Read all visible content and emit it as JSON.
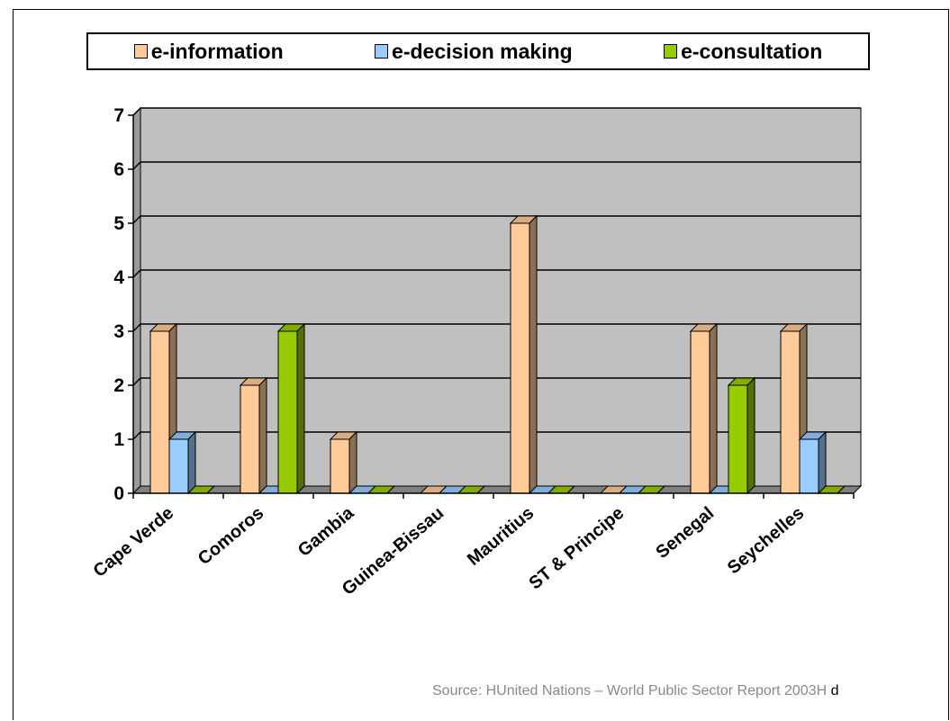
{
  "chart_data": {
    "type": "bar",
    "categories": [
      "Cape Verde",
      "Comoros",
      "Gambia",
      "Guinea-Bissau",
      "Mauritius",
      "ST & Principe",
      "Senegal",
      "Seychelles"
    ],
    "series": [
      {
        "name": "e-information",
        "values": [
          3,
          2,
          1,
          0,
          5,
          0,
          3,
          3
        ],
        "color": "#ffcc99"
      },
      {
        "name": "e-decision making",
        "values": [
          1,
          0,
          0,
          0,
          0,
          0,
          0,
          1
        ],
        "color": "#99ccff"
      },
      {
        "name": "e-consultation",
        "values": [
          0,
          3,
          0,
          0,
          0,
          0,
          2,
          0
        ],
        "color": "#99cc00"
      }
    ],
    "ylim": [
      0,
      7
    ],
    "yticks": [
      0,
      1,
      2,
      3,
      4,
      5,
      6,
      7
    ],
    "grid": true,
    "legend_position": "top",
    "plot_background": "#c0c0c0"
  },
  "source": {
    "text": "Source: HUnited Nations – World Public Sector Report 2003H",
    "tail": " d"
  }
}
